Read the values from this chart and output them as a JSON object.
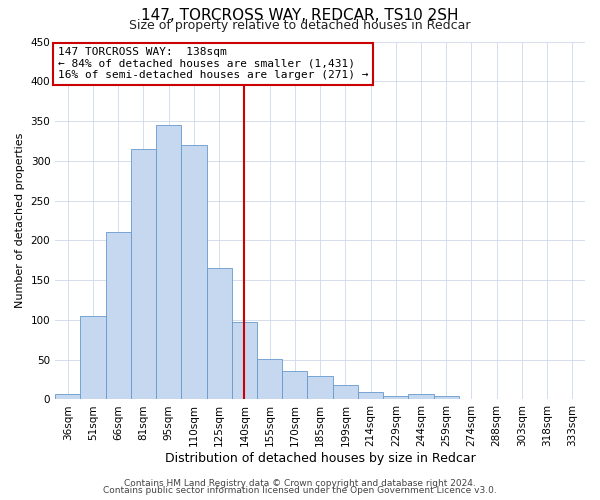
{
  "title": "147, TORCROSS WAY, REDCAR, TS10 2SH",
  "subtitle": "Size of property relative to detached houses in Redcar",
  "xlabel": "Distribution of detached houses by size in Redcar",
  "ylabel": "Number of detached properties",
  "bar_labels": [
    "36sqm",
    "51sqm",
    "66sqm",
    "81sqm",
    "95sqm",
    "110sqm",
    "125sqm",
    "140sqm",
    "155sqm",
    "170sqm",
    "185sqm",
    "199sqm",
    "214sqm",
    "229sqm",
    "244sqm",
    "259sqm",
    "274sqm",
    "288sqm",
    "303sqm",
    "318sqm",
    "333sqm"
  ],
  "bar_values": [
    7,
    105,
    210,
    315,
    345,
    320,
    165,
    97,
    51,
    36,
    30,
    18,
    10,
    4,
    7,
    4,
    1,
    1,
    1,
    1,
    1
  ],
  "bar_color": "#c5d8f0",
  "bar_edge_color": "#6699cc",
  "vline_x": 7,
  "vline_color": "#cc0000",
  "ylim": [
    0,
    450
  ],
  "yticks": [
    0,
    50,
    100,
    150,
    200,
    250,
    300,
    350,
    400,
    450
  ],
  "annotation_title": "147 TORCROSS WAY:  138sqm",
  "annotation_line1": "← 84% of detached houses are smaller (1,431)",
  "annotation_line2": "16% of semi-detached houses are larger (271) →",
  "annotation_box_color": "#ffffff",
  "annotation_box_edge": "#cc0000",
  "footer_line1": "Contains HM Land Registry data © Crown copyright and database right 2024.",
  "footer_line2": "Contains public sector information licensed under the Open Government Licence v3.0.",
  "background_color": "#ffffff",
  "grid_color": "#ccd9e8",
  "title_fontsize": 11,
  "subtitle_fontsize": 9,
  "xlabel_fontsize": 9,
  "ylabel_fontsize": 8,
  "tick_fontsize": 7.5,
  "annotation_fontsize": 8,
  "footer_fontsize": 6.5
}
